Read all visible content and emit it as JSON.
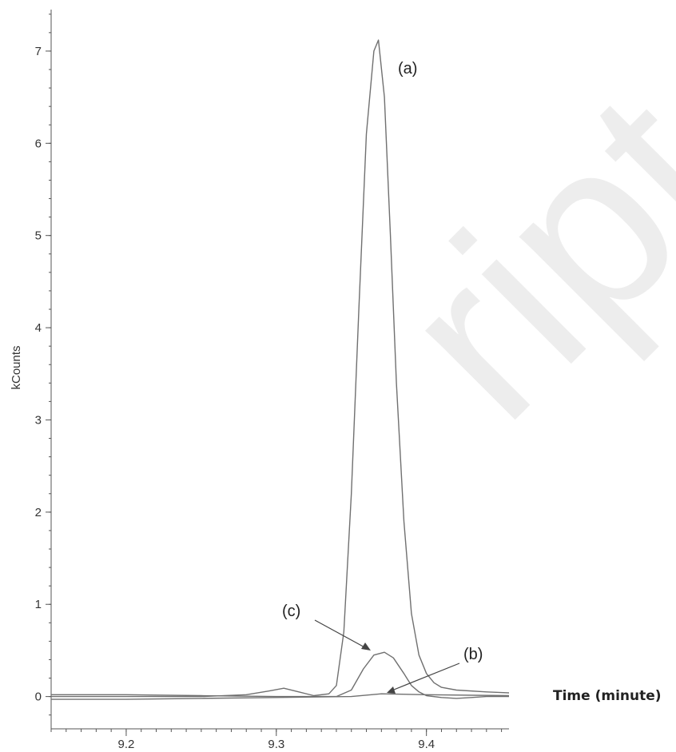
{
  "chart_data": {
    "type": "line",
    "title": "",
    "ylabel": "kCounts",
    "xlabel": "Time (minute)",
    "xlim": [
      9.15,
      9.455
    ],
    "ylim": [
      -0.35,
      7.45
    ],
    "xticks": [
      9.2,
      9.3,
      9.4
    ],
    "xtick_labels": [
      "9.2",
      "9.3",
      "9.4"
    ],
    "yticks": [
      0,
      1,
      2,
      3,
      4,
      5,
      6,
      7
    ],
    "ytick_labels": [
      "0",
      "1",
      "2",
      "3",
      "4",
      "5",
      "6",
      "7"
    ],
    "grid": false,
    "line_color": "#707070",
    "watermark": "ript",
    "series": [
      {
        "annotation": "(a)",
        "x": [
          9.15,
          9.2,
          9.25,
          9.28,
          9.295,
          9.305,
          9.315,
          9.325,
          9.335,
          9.34,
          9.345,
          9.35,
          9.355,
          9.36,
          9.365,
          9.368,
          9.372,
          9.376,
          9.38,
          9.385,
          9.39,
          9.395,
          9.4,
          9.405,
          9.41,
          9.42,
          9.44,
          9.455
        ],
        "y": [
          0.0,
          0.0,
          0.0,
          0.02,
          0.06,
          0.09,
          0.05,
          0.01,
          0.03,
          0.12,
          0.7,
          2.2,
          4.2,
          6.1,
          7.0,
          7.12,
          6.5,
          5.0,
          3.4,
          1.9,
          0.9,
          0.45,
          0.25,
          0.15,
          0.1,
          0.07,
          0.05,
          0.04
        ]
      },
      {
        "annotation": "(b)",
        "x": [
          9.15,
          9.2,
          9.25,
          9.3,
          9.35,
          9.37,
          9.4,
          9.455
        ],
        "y": [
          -0.03,
          -0.03,
          -0.02,
          -0.01,
          0.0,
          0.03,
          0.02,
          0.01
        ]
      },
      {
        "annotation": "(c)",
        "x": [
          9.15,
          9.2,
          9.25,
          9.3,
          9.34,
          9.35,
          9.358,
          9.365,
          9.372,
          9.378,
          9.385,
          9.39,
          9.395,
          9.4,
          9.41,
          9.42,
          9.43,
          9.44,
          9.455
        ],
        "y": [
          0.02,
          0.02,
          0.01,
          0.0,
          0.0,
          0.07,
          0.3,
          0.45,
          0.48,
          0.42,
          0.25,
          0.12,
          0.05,
          0.01,
          -0.01,
          -0.02,
          -0.01,
          0.0,
          0.0
        ]
      }
    ]
  }
}
